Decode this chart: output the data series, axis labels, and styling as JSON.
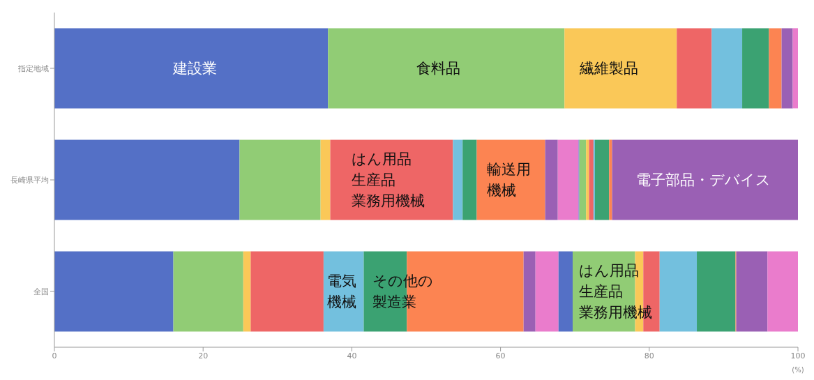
{
  "chart_data": {
    "type": "bar",
    "orientation": "horizontal",
    "stacked": true,
    "categories": [
      "指定地域",
      "長崎県平均",
      "全国"
    ],
    "xlabel": "(%)",
    "xlim": [
      0,
      100
    ],
    "xticks": [
      0,
      20,
      40,
      60,
      80,
      100
    ],
    "grid": false,
    "legend": false,
    "series": [
      {
        "color": "#5470c6",
        "values": [
          36.8,
          24.9,
          16.0
        ]
      },
      {
        "color": "#91cc75",
        "values": [
          31.8,
          10.9,
          9.4
        ]
      },
      {
        "color": "#fac858",
        "values": [
          15.1,
          1.3,
          1.0
        ]
      },
      {
        "color": "#ee6666",
        "values": [
          4.7,
          16.5,
          9.8
        ]
      },
      {
        "color": "#73c0de",
        "values": [
          4.1,
          1.3,
          5.4
        ]
      },
      {
        "color": "#3ba272",
        "values": [
          3.6,
          1.9,
          5.8
        ]
      },
      {
        "color": "#fc8452",
        "values": [
          1.7,
          9.2,
          15.7
        ]
      },
      {
        "color": "#9a60b4",
        "values": [
          1.5,
          1.7,
          1.6
        ]
      },
      {
        "color": "#ea7ccc",
        "values": [
          0.7,
          2.8,
          3.1
        ]
      },
      {
        "color": "#5470c6",
        "values": [
          0,
          0.1,
          1.9
        ]
      },
      {
        "color": "#91cc75",
        "values": [
          0,
          0.9,
          8.4
        ]
      },
      {
        "color": "#fac858",
        "values": [
          0,
          0.4,
          1.1
        ]
      },
      {
        "color": "#ee6666",
        "values": [
          0,
          0.6,
          2.2
        ]
      },
      {
        "color": "#73c0de",
        "values": [
          0,
          0.2,
          5.0
        ]
      },
      {
        "color": "#3ba272",
        "values": [
          0,
          1.9,
          5.2
        ]
      },
      {
        "color": "#fc8452",
        "values": [
          0,
          0.4,
          0.1
        ]
      },
      {
        "color": "#9a60b4",
        "values": [
          0,
          25.0,
          4.2
        ]
      },
      {
        "color": "#ea7ccc",
        "values": [
          0,
          0,
          4.1
        ]
      }
    ],
    "annotations": [
      "建設業",
      "食料品",
      "繊維製品",
      "はん用品生産品業務用機械",
      "輸送用機械",
      "電子部品・デバイス",
      "電気機械",
      "その他の製造業",
      "はん用品生産品業務用機械"
    ]
  }
}
